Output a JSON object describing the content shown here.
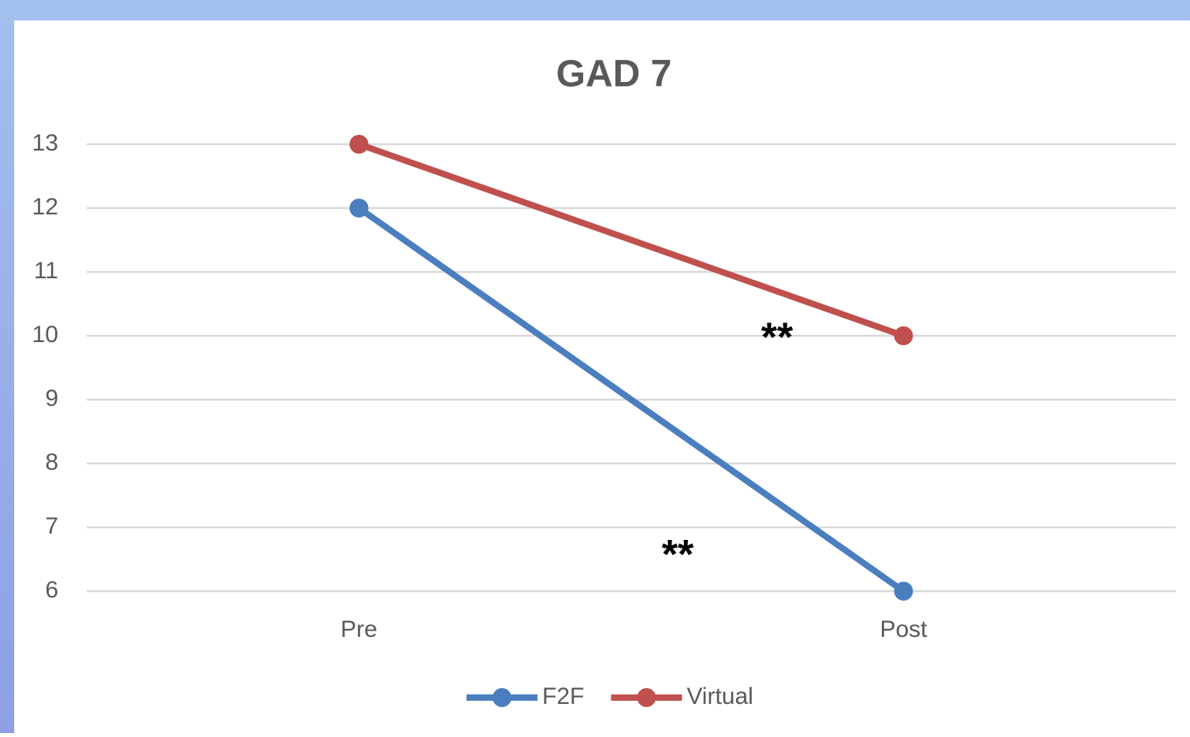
{
  "chart_data": {
    "type": "line",
    "title": "GAD 7",
    "categories": [
      "Pre",
      "Post"
    ],
    "series": [
      {
        "name": "F2F",
        "color": "#4a7ebf",
        "values": [
          12,
          6
        ]
      },
      {
        "name": "Virtual",
        "color": "#c0504d",
        "values": [
          13,
          10
        ]
      }
    ],
    "annotations": [
      "**",
      "**"
    ],
    "ylim": [
      6,
      13
    ],
    "yticks": [
      6,
      7,
      8,
      9,
      10,
      11,
      12,
      13
    ],
    "grid": true,
    "legend": "bottom"
  }
}
